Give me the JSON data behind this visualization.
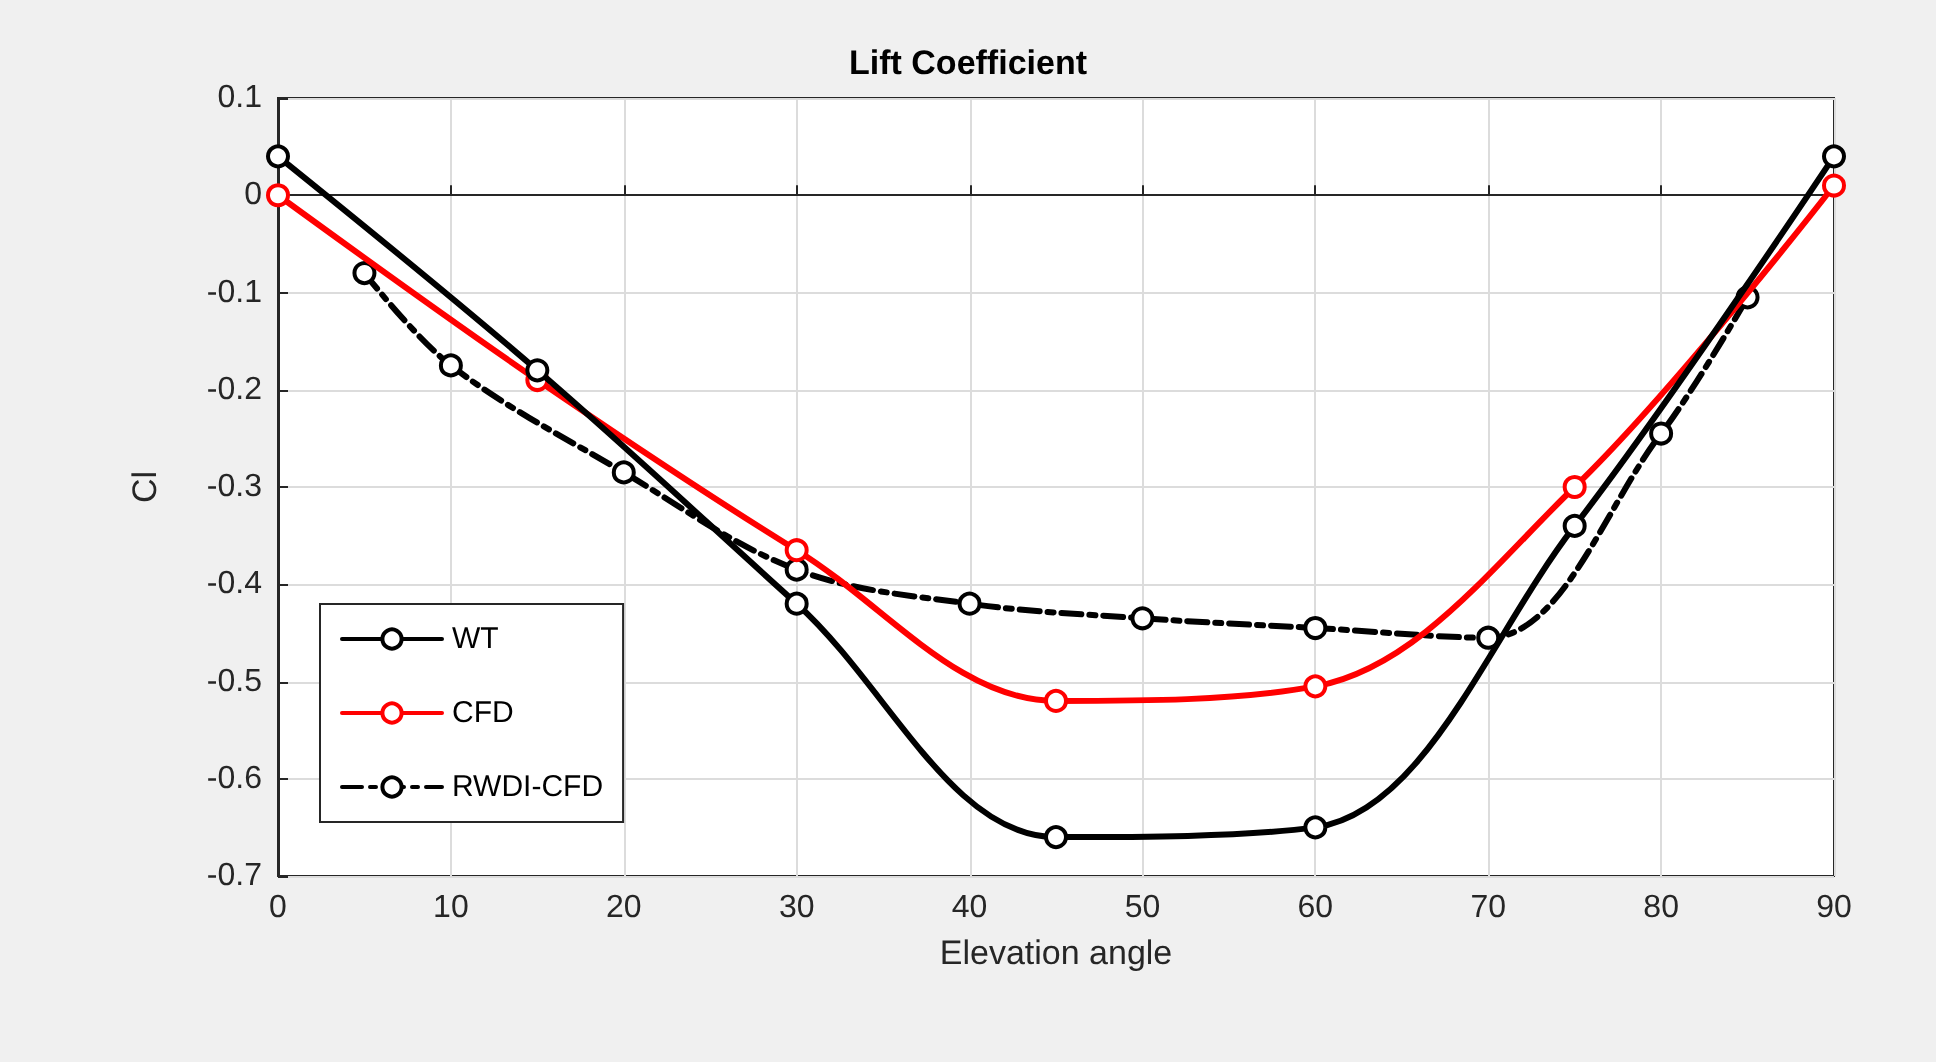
{
  "chart_data": {
    "type": "line",
    "title": "Lift Coefficient",
    "xlabel": "Elevation angle",
    "ylabel": "Cl",
    "series": [
      {
        "name": "WT",
        "color": "#000000",
        "line_style": "solid",
        "x": [
          0,
          15,
          30,
          45,
          60,
          75,
          90
        ],
        "values": [
          0.04,
          -0.18,
          -0.42,
          -0.66,
          -0.65,
          -0.34,
          0.04
        ]
      },
      {
        "name": "CFD",
        "color": "#ff0000",
        "line_style": "solid",
        "x": [
          0,
          15,
          30,
          45,
          60,
          75,
          90
        ],
        "values": [
          0,
          -0.19,
          -0.365,
          -0.52,
          -0.505,
          -0.3,
          0.01
        ]
      },
      {
        "name": "RWDI-CFD",
        "color": "#000000",
        "line_style": "dashed",
        "x": [
          5,
          10,
          20,
          30,
          40,
          50,
          60,
          70,
          80,
          85
        ],
        "values": [
          -0.08,
          -0.175,
          -0.285,
          -0.385,
          -0.42,
          -0.435,
          -0.445,
          -0.455,
          -0.245,
          -0.105
        ]
      }
    ],
    "xlim": [
      0,
      90
    ],
    "xticks": [
      0,
      10,
      20,
      30,
      40,
      50,
      60,
      70,
      80,
      90
    ],
    "ylim": [
      -0.7,
      0.1
    ],
    "yticks": [
      -0.7,
      -0.6,
      -0.5,
      -0.4,
      -0.3,
      -0.2,
      -0.1,
      0,
      0.1
    ],
    "grid": true,
    "legend": "bottom left",
    "marker": "circle"
  }
}
